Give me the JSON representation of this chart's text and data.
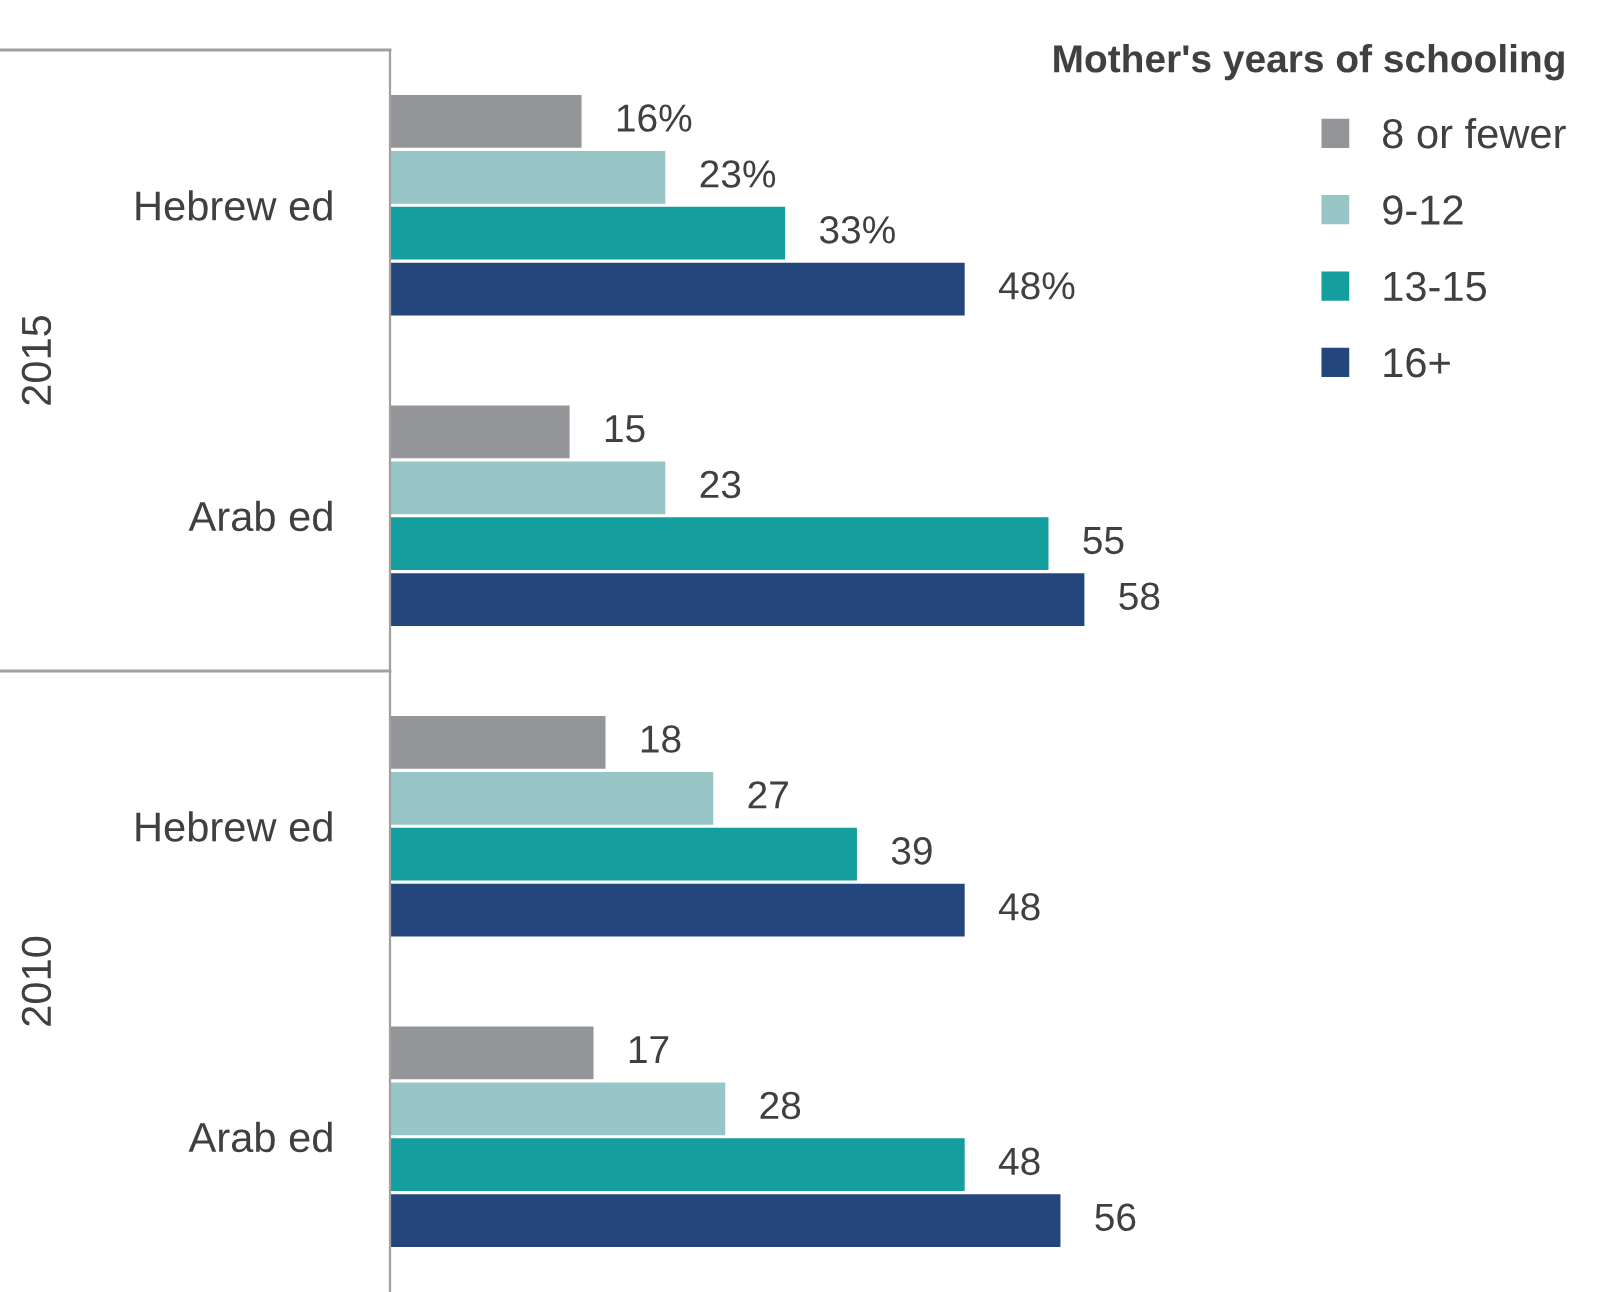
{
  "chart_data": {
    "type": "bar",
    "orientation": "horizontal",
    "relative": false,
    "legend": "top right",
    "legend_title": "Mother's years of schooling",
    "categories": [
      "Hebrew ed",
      "Arab ed",
      "Hebrew ed",
      "Arab ed"
    ],
    "annotations": [
      "2015",
      "2010"
    ],
    "series": [
      {
        "name": "8 or fewer",
        "color": "#939598",
        "values": [
          16,
          15,
          18,
          17
        ],
        "value_labels": [
          "16%",
          "15",
          "18",
          "17"
        ]
      },
      {
        "name": "9-12",
        "color": "#98c5c6",
        "values": [
          23,
          23,
          27,
          28
        ],
        "value_labels": [
          "23%",
          "23",
          "27",
          "28"
        ]
      },
      {
        "name": "13-15",
        "color": "#149e9e",
        "values": [
          33,
          55,
          39,
          48
        ],
        "value_labels": [
          "33%",
          "55",
          "39",
          "48"
        ]
      },
      {
        "name": "16+",
        "color": "#24467d",
        "values": [
          48,
          58,
          48,
          56
        ],
        "value_labels": [
          "48%",
          "58",
          "48",
          "56"
        ]
      }
    ]
  }
}
